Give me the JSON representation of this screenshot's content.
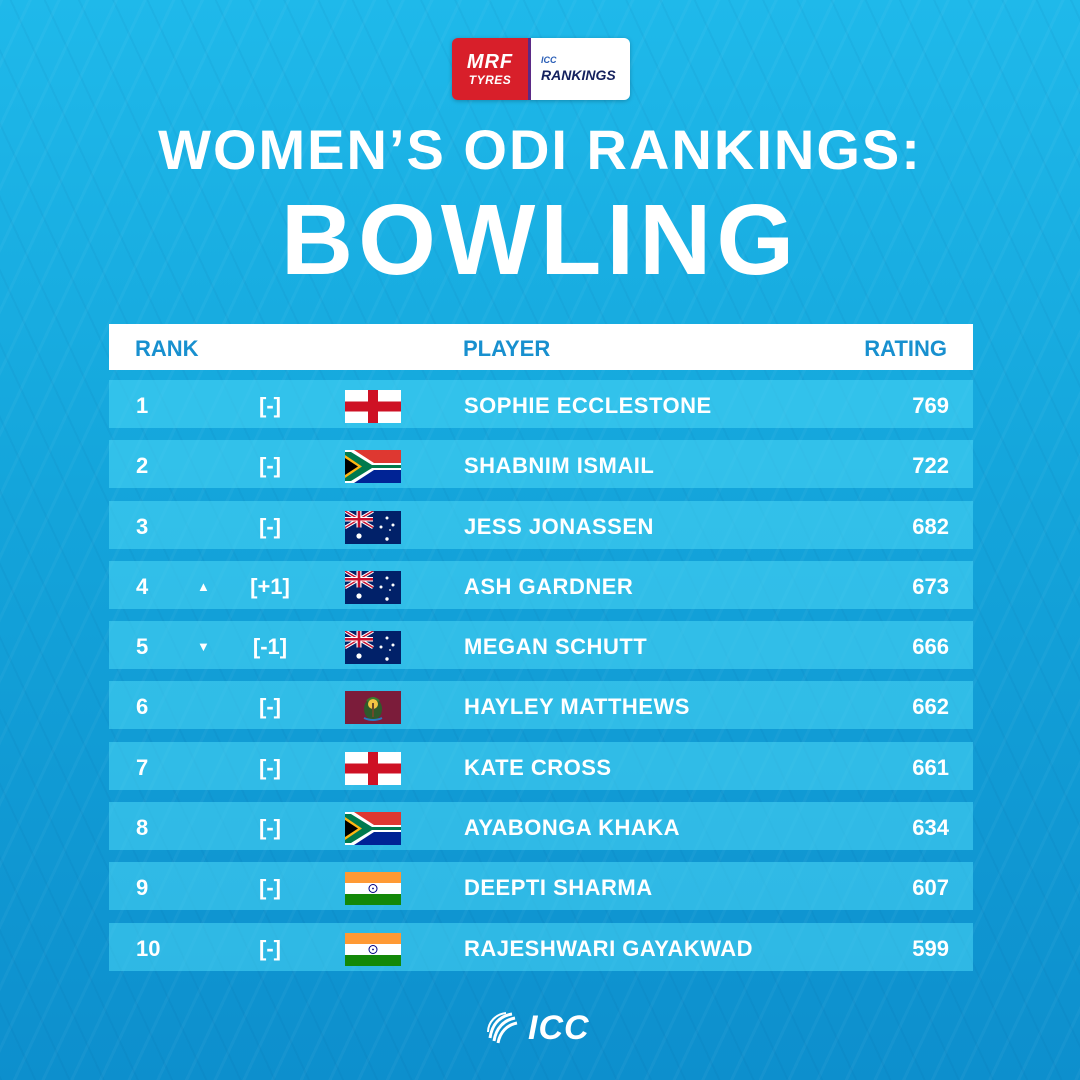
{
  "logo": {
    "mrf": "MRF",
    "tyres": "TYRES",
    "icc": "ICC",
    "rankings": "RANKINGS"
  },
  "title": "WOMEN’S ODI RANKINGS:",
  "subtitle": "BOWLING",
  "table": {
    "headers": {
      "rank": "RANK",
      "player": "PLAYER",
      "rating": "RATING"
    },
    "rows": [
      {
        "rank": "1",
        "movement": "[-]",
        "arrow": "",
        "flag": "england-flag",
        "player": "SOPHIE ECCLESTONE",
        "rating": "769"
      },
      {
        "rank": "2",
        "movement": "[-]",
        "arrow": "",
        "flag": "south-africa-flag",
        "player": "SHABNIM ISMAIL",
        "rating": "722"
      },
      {
        "rank": "3",
        "movement": "[-]",
        "arrow": "",
        "flag": "australia-flag",
        "player": "JESS JONASSEN",
        "rating": "682"
      },
      {
        "rank": "4",
        "movement": "[+1]",
        "arrow": "▲",
        "flag": "australia-flag",
        "player": "ASH GARDNER",
        "rating": "673"
      },
      {
        "rank": "5",
        "movement": "[-1]",
        "arrow": "▼",
        "flag": "australia-flag",
        "player": "MEGAN SCHUTT",
        "rating": "666"
      },
      {
        "rank": "6",
        "movement": "[-]",
        "arrow": "",
        "flag": "west-indies-flag",
        "player": "HAYLEY MATTHEWS",
        "rating": "662"
      },
      {
        "rank": "7",
        "movement": "[-]",
        "arrow": "",
        "flag": "england-flag",
        "player": "KATE CROSS",
        "rating": "661"
      },
      {
        "rank": "8",
        "movement": "[-]",
        "arrow": "",
        "flag": "south-africa-flag",
        "player": "AYABONGA KHAKA",
        "rating": "634"
      },
      {
        "rank": "9",
        "movement": "[-]",
        "arrow": "",
        "flag": "india-flag",
        "player": "DEEPTI SHARMA",
        "rating": "607"
      },
      {
        "rank": "10",
        "movement": "[-]",
        "arrow": "",
        "flag": "india-flag",
        "player": "RAJESHWARI GAYAKWAD",
        "rating": "599"
      }
    ]
  },
  "footer": {
    "logo_text": "ICC"
  },
  "colors": {
    "background": "#14a5db",
    "header_text": "#1890cf",
    "row_bg": "#4bd7f5",
    "mrf_red": "#d81f2a"
  }
}
